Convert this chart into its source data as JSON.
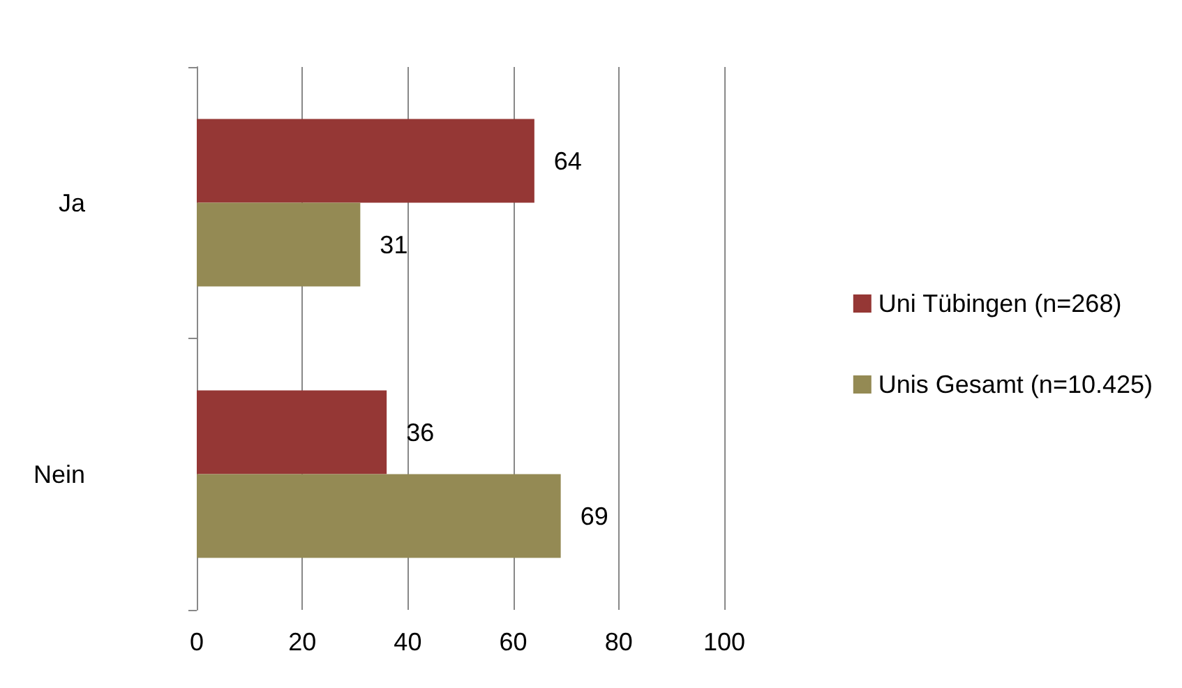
{
  "chart_data": {
    "type": "bar",
    "orientation": "horizontal",
    "categories": [
      "Ja",
      "Nein"
    ],
    "series": [
      {
        "name": "Uni Tübingen (n=268)",
        "color": "#953735",
        "values": [
          64,
          36
        ]
      },
      {
        "name": "Unis Gesamt (n=10.425)",
        "color": "#948a54",
        "values": [
          31,
          69
        ]
      }
    ],
    "xlim": [
      0,
      100
    ],
    "xticks": [
      0,
      20,
      40,
      60,
      80,
      100
    ],
    "grid": "x",
    "legend": "right",
    "data_labels": true
  }
}
